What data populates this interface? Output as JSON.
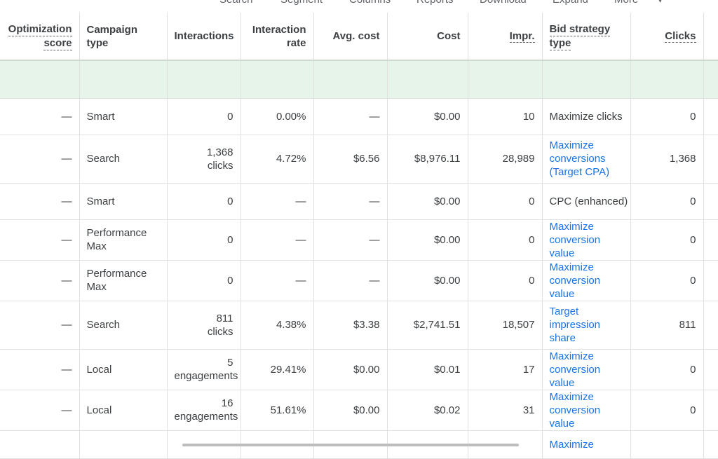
{
  "toolbar": {
    "items": [
      "Search",
      "Segment",
      "Columns",
      "Reports",
      "Download",
      "Expand",
      "More"
    ]
  },
  "columns": {
    "opt_line1": "Optimization",
    "opt_line2": "score",
    "type_line1": "Campaign",
    "type_line2": "type",
    "interactions": "Interactions",
    "rate_line1": "Interaction",
    "rate_line2": "rate",
    "avg_cost": "Avg. cost",
    "cost": "Cost",
    "impr": "Impr.",
    "bid_line1": "Bid strategy",
    "bid_line2": "type",
    "clicks": "Clicks"
  },
  "rows": [
    {
      "opt": "—",
      "type": [
        "Smart"
      ],
      "interactions": [
        "0"
      ],
      "rate": "0.00%",
      "avg_cost": "—",
      "cost": "$0.00",
      "impr": "10",
      "bid": [
        "Maximize clicks"
      ],
      "bid_link": false,
      "clicks": "0"
    },
    {
      "opt": "—",
      "type": [
        "Search"
      ],
      "interactions": [
        "1,368",
        "clicks"
      ],
      "rate": "4.72%",
      "avg_cost": "$6.56",
      "cost": "$8,976.11",
      "impr": "28,989",
      "bid": [
        "Maximize",
        "conversions",
        "(Target CPA)"
      ],
      "bid_link": true,
      "clicks": "1,368"
    },
    {
      "opt": "—",
      "type": [
        "Smart"
      ],
      "interactions": [
        "0"
      ],
      "rate": "—",
      "avg_cost": "—",
      "cost": "$0.00",
      "impr": "0",
      "bid": [
        "CPC (enhanced)"
      ],
      "bid_link": false,
      "clicks": "0"
    },
    {
      "opt": "—",
      "type": [
        "Performance",
        "Max"
      ],
      "interactions": [
        "0"
      ],
      "rate": "—",
      "avg_cost": "—",
      "cost": "$0.00",
      "impr": "0",
      "bid": [
        "Maximize",
        "conversion",
        "value"
      ],
      "bid_link": true,
      "clicks": "0"
    },
    {
      "opt": "—",
      "type": [
        "Performance",
        "Max"
      ],
      "interactions": [
        "0"
      ],
      "rate": "—",
      "avg_cost": "—",
      "cost": "$0.00",
      "impr": "0",
      "bid": [
        "Maximize",
        "conversion",
        "value"
      ],
      "bid_link": true,
      "clicks": "0"
    },
    {
      "opt": "—",
      "type": [
        "Search"
      ],
      "interactions": [
        "811",
        "clicks"
      ],
      "rate": "4.38%",
      "avg_cost": "$3.38",
      "cost": "$2,741.51",
      "impr": "18,507",
      "bid": [
        "Target",
        "impression",
        "share"
      ],
      "bid_link": true,
      "clicks": "811"
    },
    {
      "opt": "—",
      "type": [
        "Local"
      ],
      "interactions": [
        "5",
        "engagements"
      ],
      "rate": "29.41%",
      "avg_cost": "$0.00",
      "cost": "$0.01",
      "impr": "17",
      "bid": [
        "Maximize",
        "conversion",
        "value"
      ],
      "bid_link": true,
      "clicks": "0"
    },
    {
      "opt": "—",
      "type": [
        "Local"
      ],
      "interactions": [
        "16",
        "engagements"
      ],
      "rate": "51.61%",
      "avg_cost": "$0.00",
      "cost": "$0.02",
      "impr": "31",
      "bid": [
        "Maximize",
        "conversion",
        "value"
      ],
      "bid_link": true,
      "clicks": "0"
    },
    {
      "opt": "",
      "type": [
        ""
      ],
      "interactions": [
        ""
      ],
      "rate": "",
      "avg_cost": "",
      "cost": "",
      "impr": "",
      "bid": [
        "Maximize"
      ],
      "bid_link": true,
      "clicks": ""
    }
  ],
  "colors": {
    "link": "#1a73e8",
    "total_row": "#e6f4ea",
    "text": "#3c4043",
    "border": "#e0e0e0"
  }
}
